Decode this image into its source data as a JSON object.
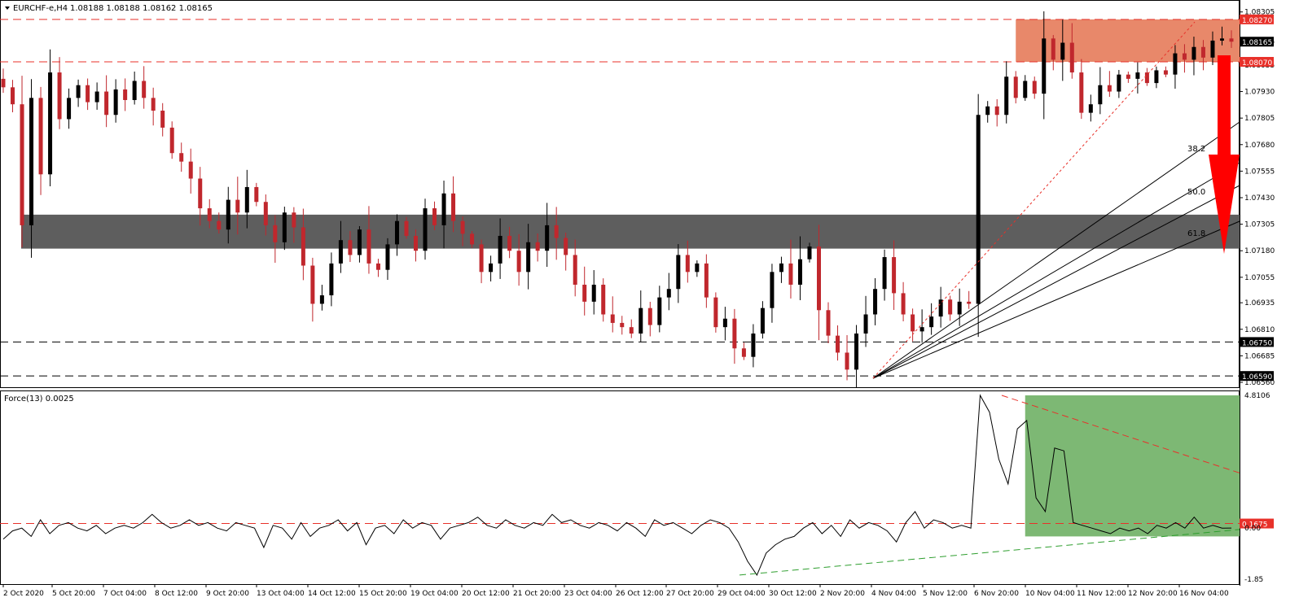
{
  "header": {
    "symbol": "EURCHF-e,H4",
    "ohlc": "1.08188 1.08188 1.08162 1.08165"
  },
  "colors": {
    "bull": "#000000",
    "bear": "#c0272d",
    "resistance_zone": "#e8886a",
    "support_zone": "#5e5e5e",
    "force_zone": "#7db874",
    "level_red": "#e8312a",
    "level_black": "#000000",
    "arrow": "#ff0000"
  },
  "chart_data": [
    {
      "type": "candlestick",
      "title": "EURCHF-e,H4",
      "ylim": [
        1.0656,
        1.083
      ],
      "y_ticks": [
        "1.08305",
        "1.08165",
        "1.08055",
        "1.07930",
        "1.07805",
        "1.07680",
        "1.07555",
        "1.07430",
        "1.07305",
        "1.07180",
        "1.07055",
        "1.06935",
        "1.06810",
        "1.06685",
        "1.06560"
      ],
      "x_ticks": [
        "2 Oct 2020",
        "5 Oct 20:00",
        "7 Oct 04:00",
        "8 Oct 12:00",
        "9 Oct 20:00",
        "13 Oct 04:00",
        "14 Oct 12:00",
        "15 Oct 20:00",
        "19 Oct 04:00",
        "20 Oct 12:00",
        "21 Oct 20:00",
        "23 Oct 04:00",
        "26 Oct 12:00",
        "27 Oct 20:00",
        "29 Oct 04:00",
        "30 Oct 12:00",
        "2 Nov 20:00",
        "4 Nov 04:00",
        "5 Nov 12:00",
        "6 Nov 20:00",
        "10 Nov 04:00",
        "11 Nov 12:00",
        "12 Nov 20:00",
        "16 Nov 04:00"
      ],
      "levels": [
        {
          "label": "1.08270",
          "value": 1.0827,
          "style": "red-dashed"
        },
        {
          "label": "1.08165",
          "value": 1.08165,
          "style": "current"
        },
        {
          "label": "1.08070",
          "value": 1.0807,
          "style": "red-dashed"
        },
        {
          "label": "1.06750",
          "value": 1.0675,
          "style": "black-dashed"
        },
        {
          "label": "1.06590",
          "value": 1.0659,
          "style": "black-dashed"
        }
      ],
      "zones": [
        {
          "name": "resistance",
          "low": 1.0807,
          "high": 1.0827
        },
        {
          "name": "support",
          "low": 1.0719,
          "high": 1.0735
        }
      ],
      "fibonacci_fan": {
        "labels": [
          "38.2",
          "50.0",
          "61.8"
        ]
      },
      "path_points": [
        1.0795,
        1.0787,
        1.073,
        1.079,
        1.0754,
        1.0802,
        1.078,
        1.079,
        1.0796,
        1.0788,
        1.0793,
        1.0782,
        1.0794,
        1.0789,
        1.0798,
        1.079,
        1.0784,
        1.0776,
        1.0764,
        1.076,
        1.0752,
        1.0738,
        1.0732,
        1.0728,
        1.0742,
        1.0736,
        1.0748,
        1.0741,
        1.073,
        1.0722,
        1.0736,
        1.0729,
        1.0711,
        1.0693,
        1.0697,
        1.0712,
        1.0723,
        1.0716,
        1.0728,
        1.0712,
        1.0709,
        1.0721,
        1.0732,
        1.0725,
        1.0718,
        1.0738,
        1.073,
        1.0745,
        1.0732,
        1.0726,
        1.0721,
        1.0708,
        1.0712,
        1.0725,
        1.0718,
        1.0708,
        1.0722,
        1.0718,
        1.073,
        1.0724,
        1.0716,
        1.0702,
        1.0694,
        1.0702,
        1.0688,
        1.0684,
        1.0682,
        1.0679,
        1.0691,
        1.0683,
        1.0696,
        1.07,
        1.0716,
        1.0708,
        1.0712,
        1.0696,
        1.0682,
        1.0686,
        1.0672,
        1.0668,
        1.0679,
        1.0691,
        1.0708,
        1.0712,
        1.0702,
        1.0714,
        1.072,
        1.069,
        1.0678,
        1.067,
        1.0662,
        1.0679,
        1.0688,
        1.07,
        1.0715,
        1.0698,
        1.0688,
        1.068,
        1.0682,
        1.0687,
        1.0695,
        1.0688,
        1.0694,
        1.0693,
        1.0782,
        1.0786,
        1.0782,
        1.08,
        1.079,
        1.0798,
        1.0792,
        1.0818,
        1.0808,
        1.0816,
        1.0802,
        1.0783,
        1.0787,
        1.0796,
        1.0793,
        1.0801,
        1.0799,
        1.0802,
        1.0797,
        1.0803,
        1.0801,
        1.0811,
        1.0808,
        1.0814,
        1.0809,
        1.0817,
        1.0818,
        1.08165
      ]
    },
    {
      "type": "line",
      "title": "Force(13) 0.0025",
      "ylim": [
        -1.85,
        4.8106
      ],
      "y_ticks": [
        "4.8106",
        "0.1675",
        "0.00",
        "-1.85"
      ],
      "levels": [
        {
          "label": "0.1675",
          "value": 0.1675,
          "style": "red-dashed"
        }
      ],
      "zone": {
        "name": "force-zone",
        "low": -0.3,
        "high": 4.8106
      },
      "path_points": [
        -0.4,
        -0.1,
        0.0,
        -0.3,
        0.3,
        -0.2,
        0.1,
        0.2,
        0.0,
        -0.1,
        0.1,
        -0.2,
        0.0,
        0.1,
        0.0,
        0.2,
        0.5,
        0.2,
        0.0,
        0.1,
        0.3,
        0.1,
        0.2,
        0.0,
        -0.1,
        0.2,
        0.1,
        0.0,
        -0.7,
        0.1,
        0.0,
        -0.4,
        0.2,
        -0.3,
        0.0,
        0.1,
        0.3,
        -0.1,
        0.2,
        -0.6,
        0.0,
        0.1,
        -0.2,
        0.3,
        0.0,
        0.2,
        0.1,
        -0.4,
        0.0,
        0.1,
        0.2,
        0.4,
        0.1,
        0.0,
        0.3,
        0.1,
        0.0,
        0.2,
        0.1,
        0.5,
        0.2,
        0.3,
        0.1,
        0.0,
        0.2,
        0.1,
        -0.1,
        0.2,
        0.0,
        -0.3,
        0.3,
        0.1,
        0.2,
        0.0,
        -0.2,
        0.1,
        0.3,
        0.2,
        0.0,
        -0.5,
        -1.2,
        -1.7,
        -0.9,
        -0.6,
        -0.4,
        -0.3,
        0.0,
        0.2,
        -0.2,
        0.1,
        -0.3,
        0.3,
        0.0,
        0.2,
        0.1,
        -0.1,
        -0.5,
        0.2,
        0.6,
        0.0,
        0.3,
        0.2,
        0.0,
        0.1,
        0.0,
        4.81,
        4.2,
        2.5,
        1.6,
        3.6,
        3.9,
        1.1,
        0.6,
        2.9,
        2.8,
        0.2,
        0.1,
        0.0,
        -0.1,
        -0.2,
        0.0,
        -0.1,
        0.0,
        -0.2,
        0.1,
        0.0,
        0.2,
        0.0,
        0.4,
        0.0,
        0.1,
        0.0,
        0.0025
      ]
    }
  ],
  "overlay_labels": {
    "fib_382": "38.2",
    "fib_500": "50.0",
    "fib_618": "61.8"
  }
}
